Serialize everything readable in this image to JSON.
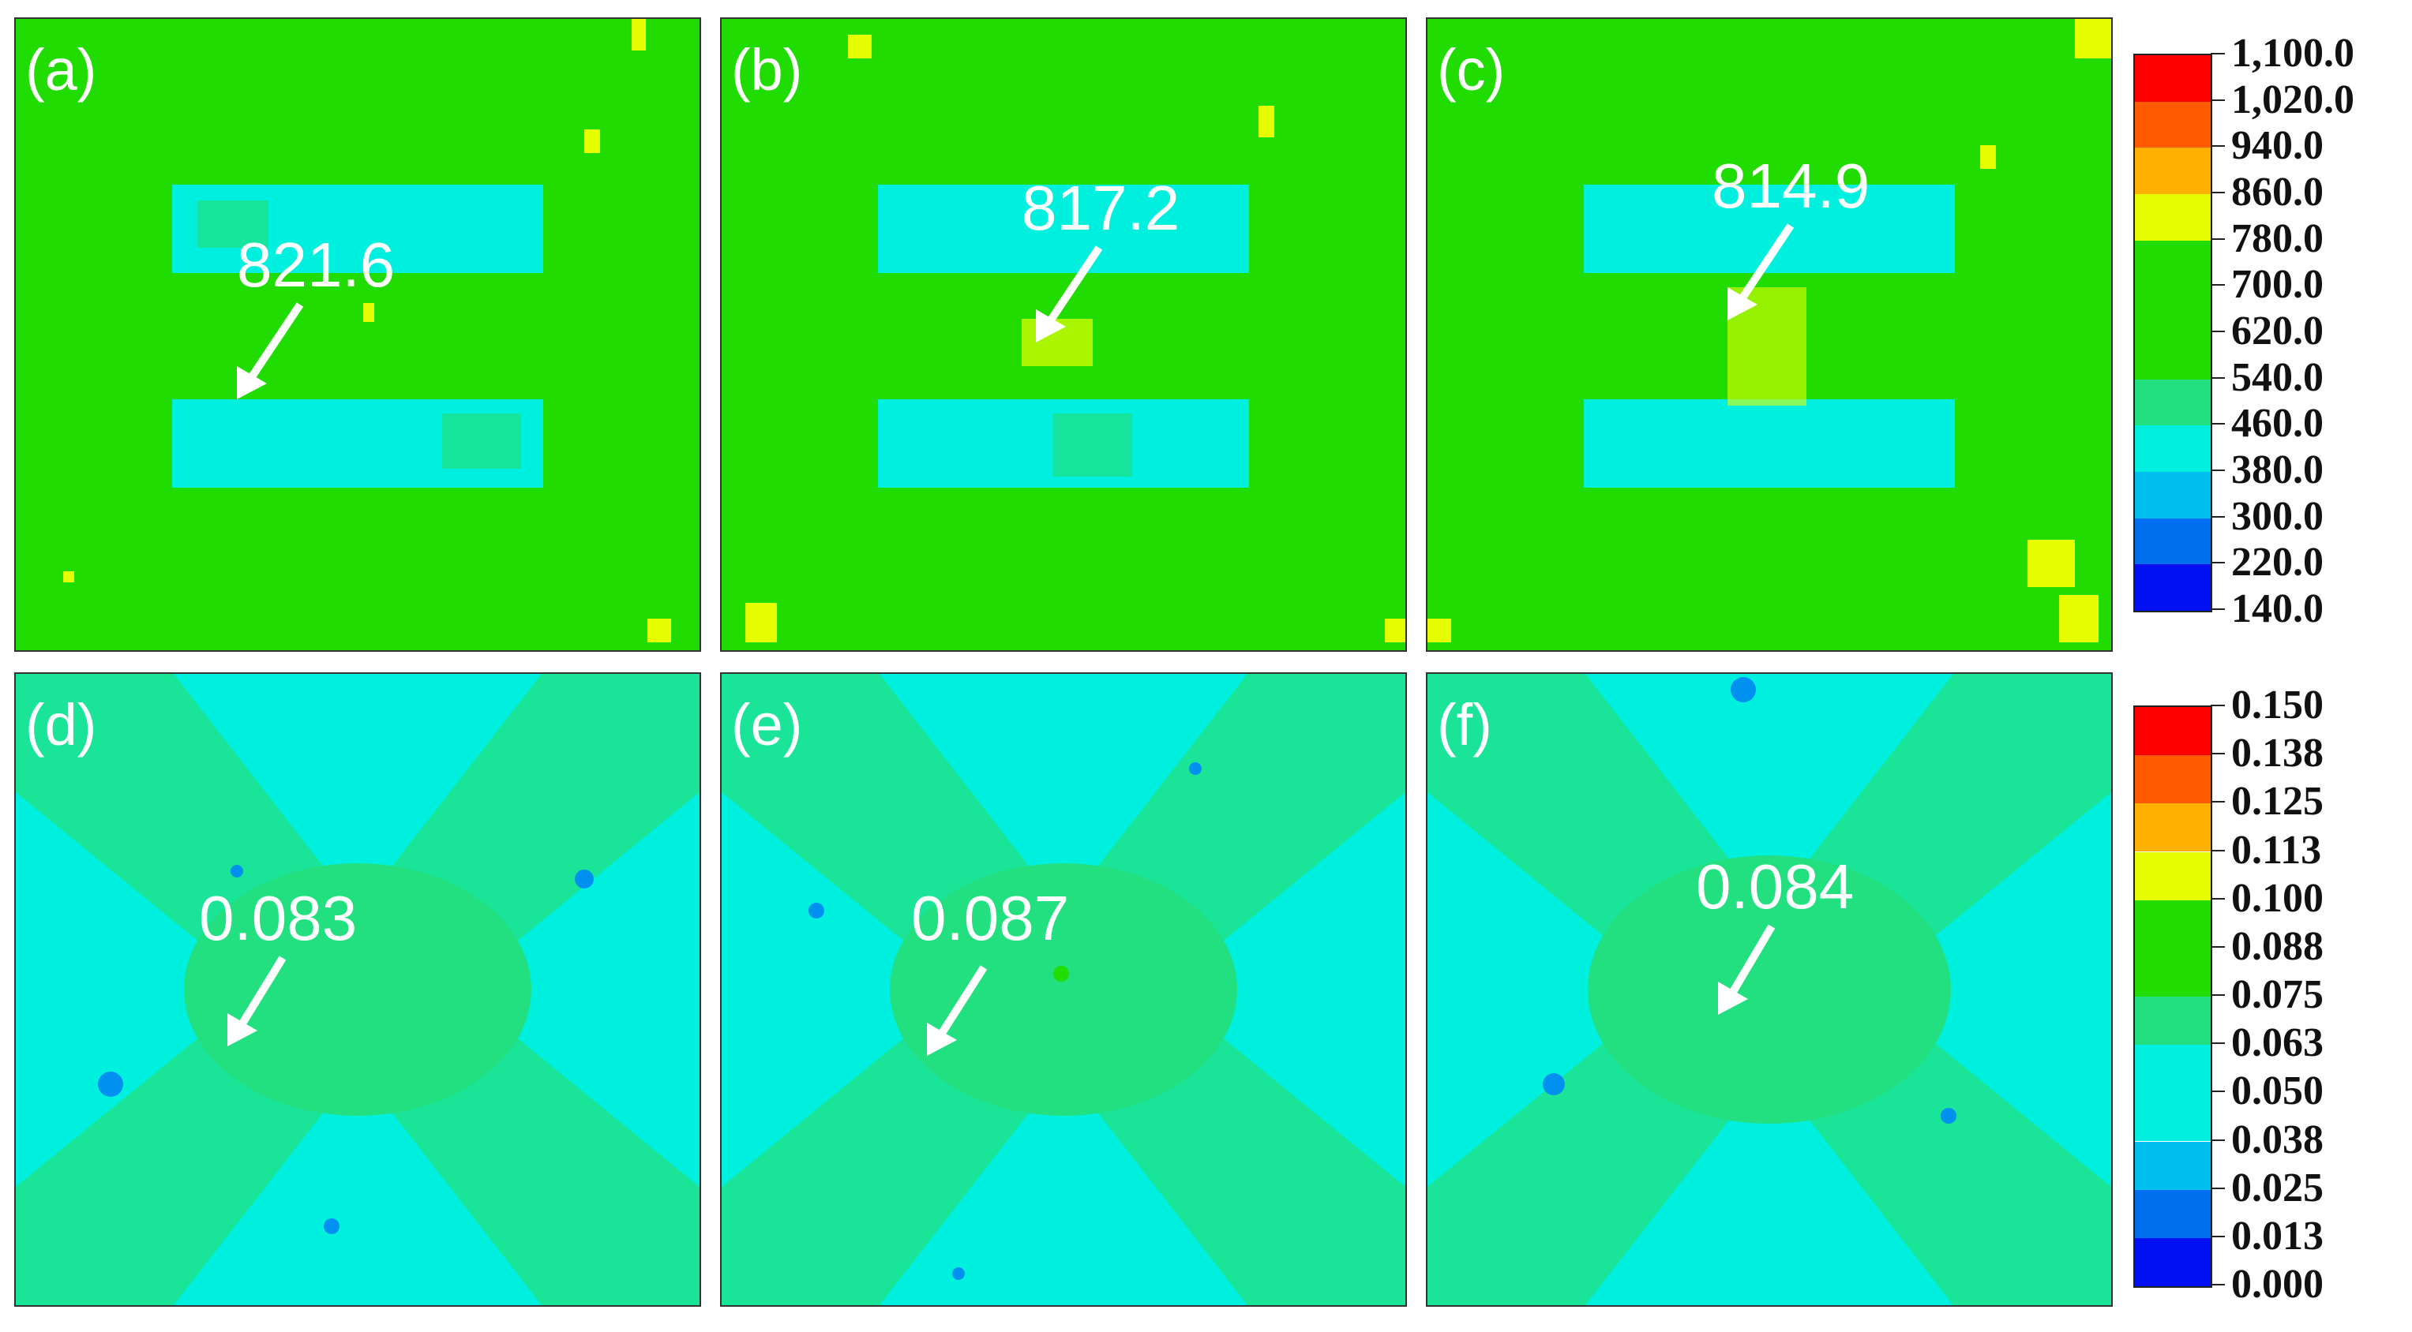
{
  "panels": [
    {
      "label": "(a)",
      "value": "821.6"
    },
    {
      "label": "(b)",
      "value": "817.2"
    },
    {
      "label": "(c)",
      "value": "814.9"
    },
    {
      "label": "(d)",
      "value": "0.083"
    },
    {
      "label": "(e)",
      "value": "0.087"
    },
    {
      "label": "(f)",
      "value": "0.084"
    }
  ],
  "colorbar_top": {
    "ticks": [
      "1,100.0",
      "1,020.0",
      "940.0",
      "860.0",
      "780.0",
      "700.0",
      "620.0",
      "540.0",
      "460.0",
      "380.0",
      "300.0",
      "220.0",
      "140.0"
    ],
    "colors": [
      "#ff0000",
      "#ff5a00",
      "#ffb000",
      "#e6ff00",
      "#22dd00",
      "#22dd00",
      "#22dd00",
      "#22e080",
      "#00f0e0",
      "#00c0f0",
      "#0070f0",
      "#0010f0"
    ]
  },
  "colorbar_bottom": {
    "ticks": [
      "0.150",
      "0.138",
      "0.125",
      "0.113",
      "0.100",
      "0.088",
      "0.075",
      "0.063",
      "0.050",
      "0.038",
      "0.025",
      "0.013",
      "0.000"
    ],
    "colors": [
      "#ff0000",
      "#ff5a00",
      "#ffb000",
      "#e6ff00",
      "#22dd00",
      "#22dd00",
      "#22e080",
      "#00f0e0",
      "#00f0e0",
      "#00c0f0",
      "#0070f0",
      "#0010f0"
    ]
  }
}
